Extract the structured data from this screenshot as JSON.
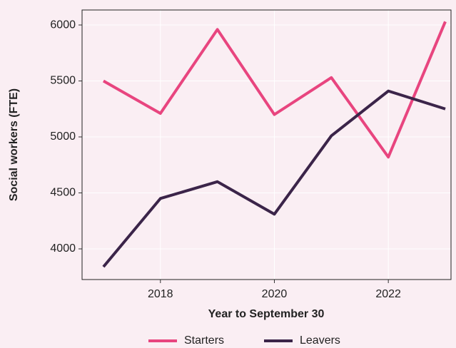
{
  "chart_data": {
    "type": "line",
    "x": [
      2017,
      2018,
      2019,
      2020,
      2021,
      2022,
      2023
    ],
    "series": [
      {
        "name": "Starters",
        "color": "#e8457f",
        "values": [
          5500,
          5210,
          5960,
          5200,
          5530,
          4820,
          6030
        ]
      },
      {
        "name": "Leavers",
        "color": "#3b2449",
        "values": [
          3840,
          4450,
          4600,
          4310,
          5010,
          5410,
          5250
        ]
      }
    ],
    "x_label": "Year to September 30",
    "y_label": "Social workers (FTE)",
    "xlim": [
      2016.625,
      2023.1
    ],
    "xticks": [
      2018,
      2020,
      2022
    ],
    "ylim": [
      3726,
      6134
    ],
    "yticks": [
      4000,
      4500,
      5000,
      5500,
      6000
    ],
    "grid": true,
    "legend": "bottom"
  }
}
